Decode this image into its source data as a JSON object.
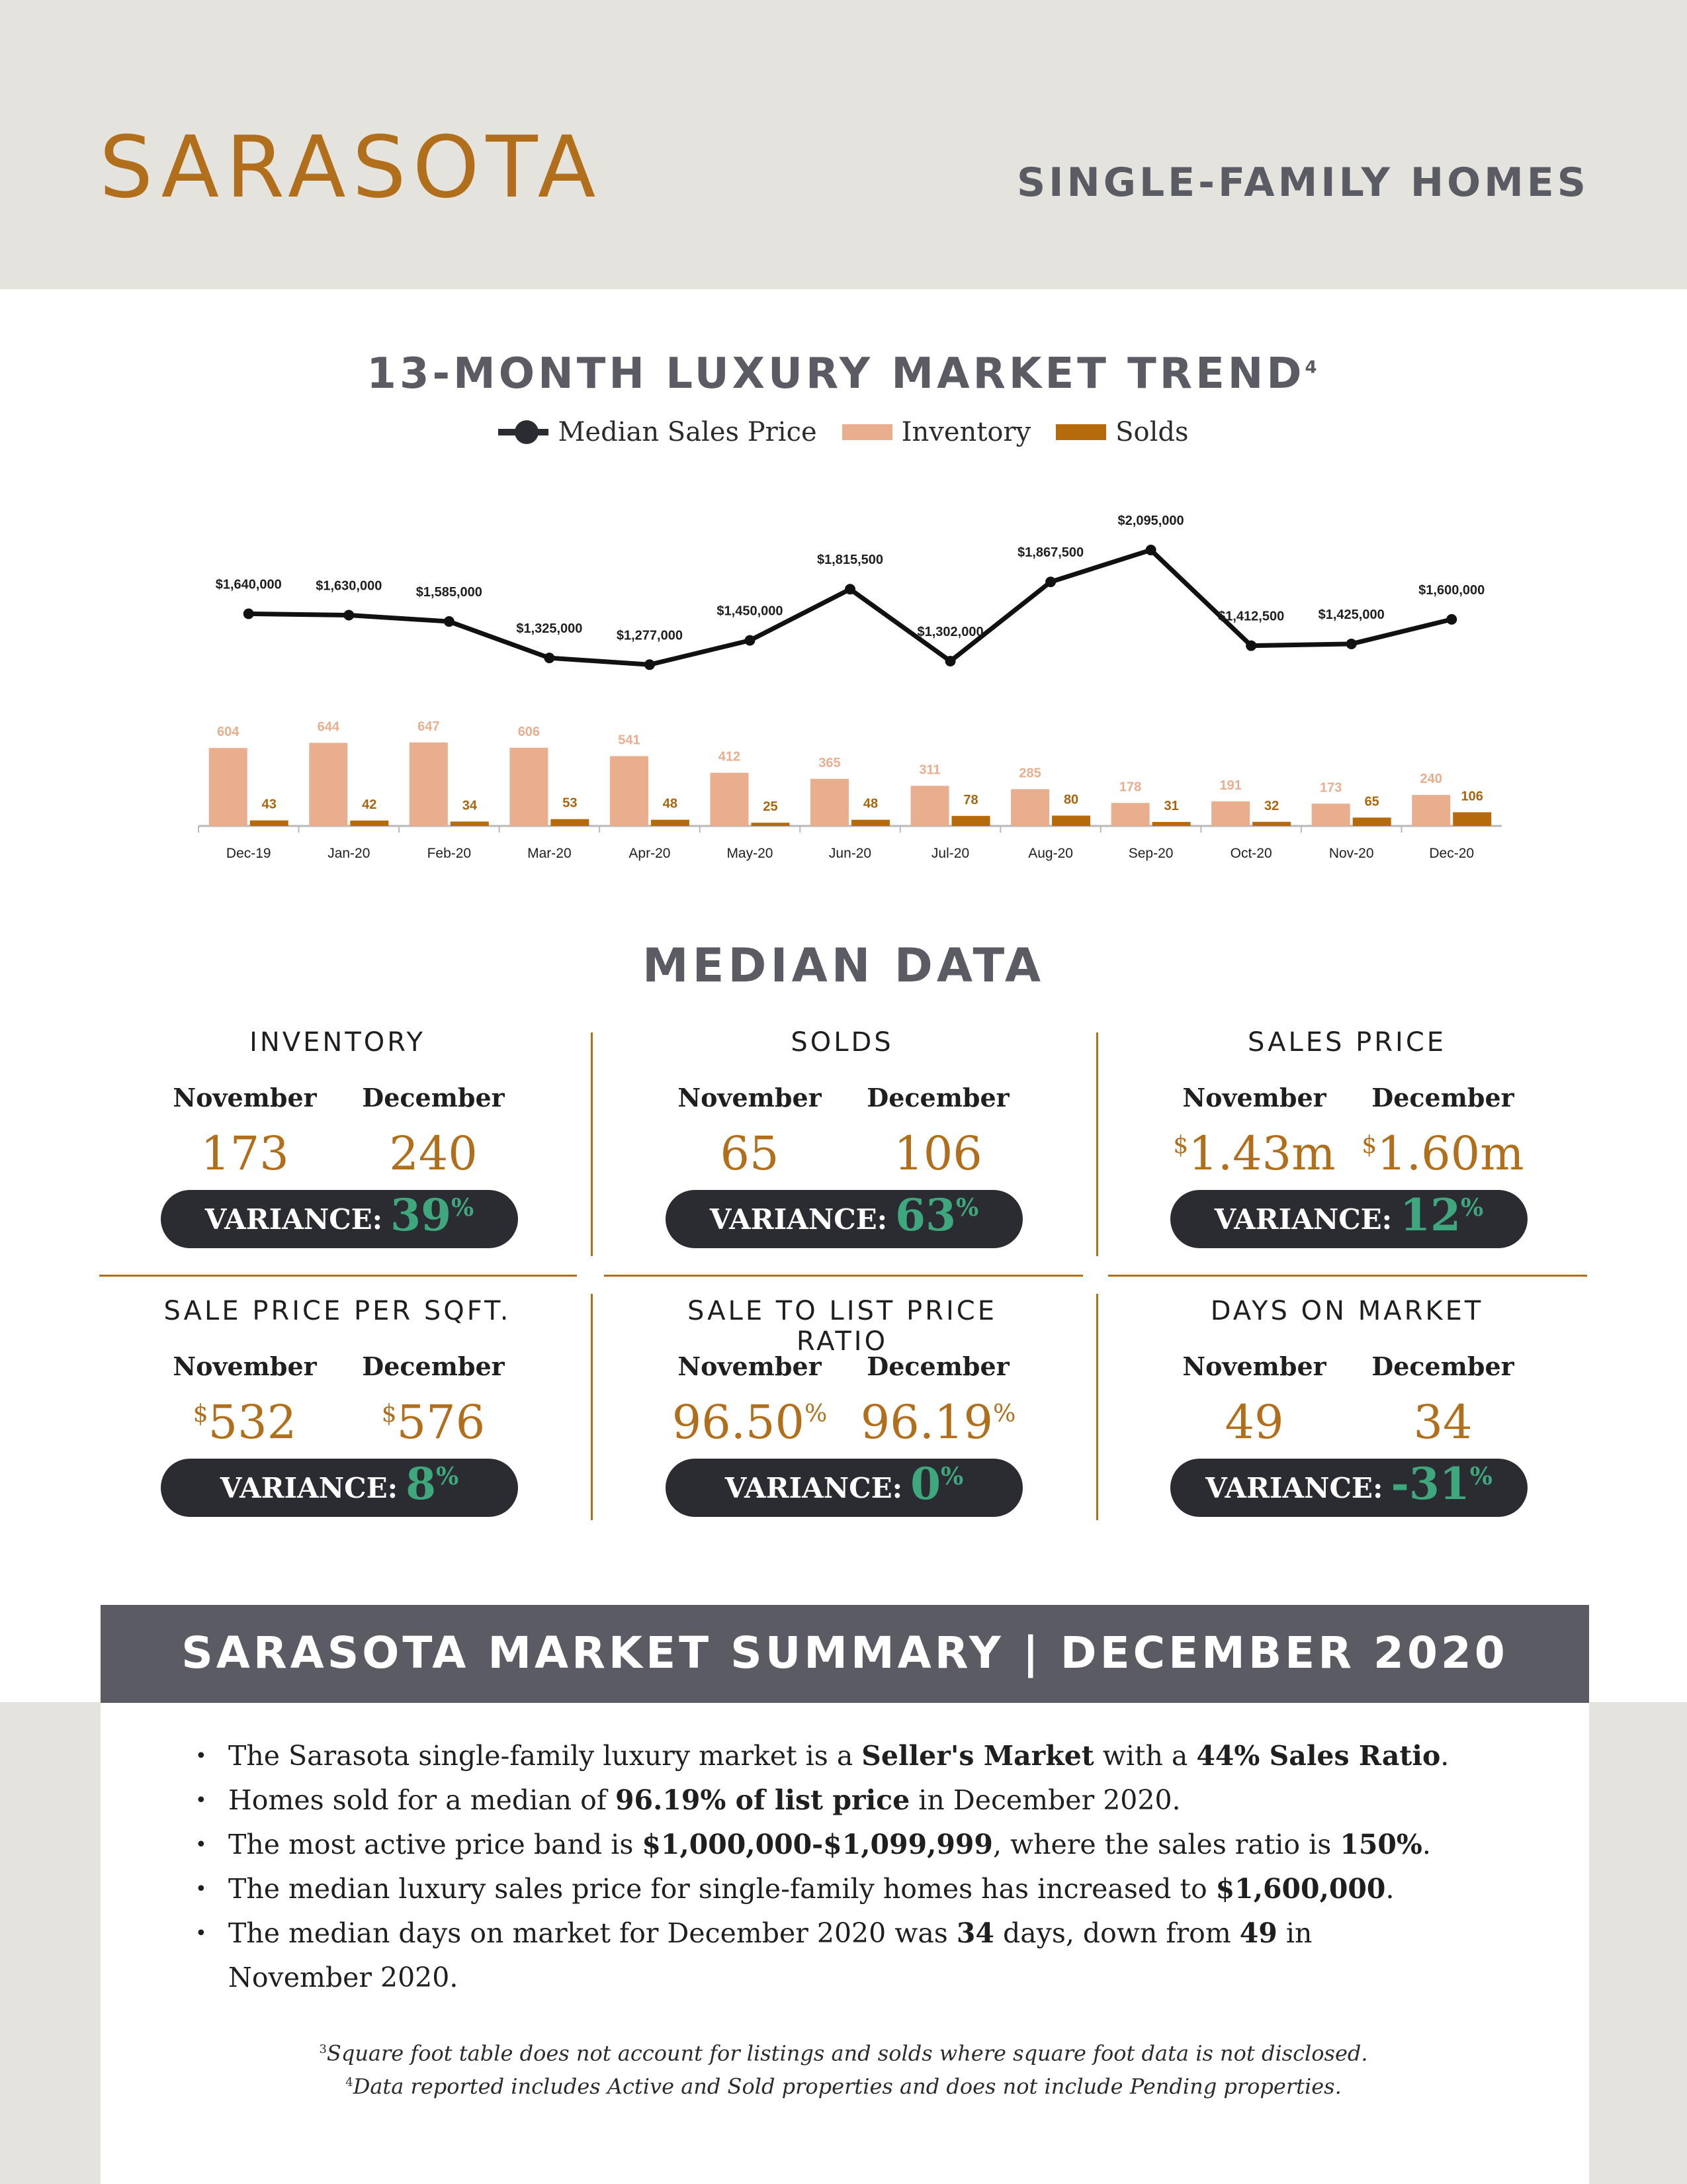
{
  "header": {
    "city": "SARASOTA",
    "doc_type": "SINGLE-FAMILY HOMES"
  },
  "colors": {
    "brand_gold": "#b16f1c",
    "slate": "#5a5b63",
    "dark": "#2b2c31",
    "inventory": "#e8ae8e",
    "solds": "#b56b0c",
    "variance_green": "#3fa77e",
    "beige": "#e5e3de"
  },
  "chart": {
    "title": "13-MONTH LUXURY MARKET TREND",
    "title_sup": "4"
  },
  "chart_data": {
    "type": "bar",
    "title": "13-MONTH LUXURY MARKET TREND",
    "categories": [
      "Dec-19",
      "Jan-20",
      "Feb-20",
      "Mar-20",
      "Apr-20",
      "May-20",
      "Jun-20",
      "Jul-20",
      "Aug-20",
      "Sep-20",
      "Oct-20",
      "Nov-20",
      "Dec-20"
    ],
    "series": [
      {
        "name": "Median Sales Price",
        "type": "line",
        "color": "#2b2c31",
        "values": [
          1640000,
          1630000,
          1585000,
          1325000,
          1277000,
          1450000,
          1815500,
          1302000,
          1867500,
          2095000,
          1412500,
          1425000,
          1600000
        ],
        "labels": [
          "$1,640,000",
          "$1,630,000",
          "$1,585,000",
          "$1,325,000",
          "$1,277,000",
          "$1,450,000",
          "$1,815,500",
          "$1,302,000",
          "$1,867,500",
          "$2,095,000",
          "$1,412,500",
          "$1,425,000",
          "$1,600,000"
        ]
      },
      {
        "name": "Inventory",
        "type": "bar",
        "color": "#e8ae8e",
        "values": [
          604,
          644,
          647,
          606,
          541,
          412,
          365,
          311,
          285,
          178,
          191,
          173,
          240
        ]
      },
      {
        "name": "Solds",
        "type": "bar",
        "color": "#b56b0c",
        "values": [
          43,
          42,
          34,
          53,
          48,
          25,
          48,
          78,
          80,
          31,
          32,
          65,
          106
        ]
      }
    ],
    "legend_position": "top",
    "grid": false
  },
  "median": {
    "title": "MEDIAN DATA",
    "month_a": "November",
    "month_b": "December",
    "variance_label": "VARIANCE:",
    "metrics": [
      {
        "title": "INVENTORY",
        "a": "173",
        "b": "240",
        "variance_sign": "",
        "variance": "39",
        "pct": "%"
      },
      {
        "title": "SOLDS",
        "a": "65",
        "b": "106",
        "variance_sign": "",
        "variance": "63",
        "pct": "%"
      },
      {
        "title": "SALES PRICE",
        "a_pre": "$",
        "a": "1.43m",
        "b_pre": "$",
        "b": "1.60m",
        "variance_sign": "",
        "variance": "12",
        "pct": "%"
      },
      {
        "title": "SALE PRICE PER SQFT.",
        "a_pre": "$",
        "a": "532",
        "b_pre": "$",
        "b": "576",
        "variance_sign": "",
        "variance": "8",
        "pct": "%"
      },
      {
        "title": "SALE TO LIST PRICE RATIO",
        "a": "96.50",
        "a_suf": "%",
        "b": "96.19",
        "b_suf": "%",
        "variance_sign": "",
        "variance": "0",
        "pct": "%"
      },
      {
        "title": "DAYS ON MARKET",
        "a": "49",
        "b": "34",
        "variance_sign": "-",
        "variance": "31",
        "pct": "%"
      }
    ]
  },
  "summary": {
    "title": "SARASOTA MARKET SUMMARY | DECEMBER 2020",
    "bullets": [
      [
        {
          "t": "The Sarasota single-family luxury market is a "
        },
        {
          "t": "Seller's Market",
          "b": true
        },
        {
          "t": " with a "
        },
        {
          "t": "44% Sales Ratio",
          "b": true
        },
        {
          "t": "."
        }
      ],
      [
        {
          "t": "Homes sold for a median of "
        },
        {
          "t": "96.19% of list price",
          "b": true
        },
        {
          "t": " in December 2020."
        }
      ],
      [
        {
          "t": "The most active price band is "
        },
        {
          "t": "$1,000,000-$1,099,999",
          "b": true
        },
        {
          "t": ", where the sales ratio is "
        },
        {
          "t": "150%",
          "b": true
        },
        {
          "t": "."
        }
      ],
      [
        {
          "t": "The median luxury sales price for single-family homes has increased to "
        },
        {
          "t": "$1,600,000",
          "b": true
        },
        {
          "t": "."
        }
      ],
      [
        {
          "t": "The median days on market for December 2020 was "
        },
        {
          "t": "34",
          "b": true
        },
        {
          "t": " days, down from "
        },
        {
          "t": "49",
          "b": true
        },
        {
          "t": " in November 2020."
        }
      ]
    ]
  },
  "footnotes": [
    {
      "sup": "3",
      "text": "Square foot table does not account for listings and solds where square foot data is not disclosed."
    },
    {
      "sup": "4",
      "text": "Data reported includes Active and Sold properties and does not include Pending properties."
    }
  ]
}
